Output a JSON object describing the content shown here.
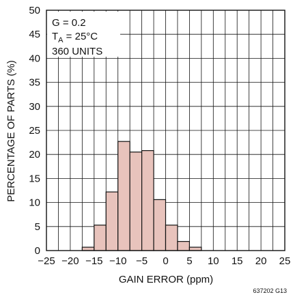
{
  "chart_data": {
    "type": "bar",
    "xlabel": "GAIN ERROR (ppm)",
    "ylabel": "PERCENTAGE OF PARTS (%)",
    "xlim": [
      -25,
      25
    ],
    "ylim": [
      0,
      50
    ],
    "x_ticks": [
      -25,
      -20,
      -15,
      -10,
      -5,
      0,
      5,
      10,
      15,
      20,
      25
    ],
    "y_ticks": [
      0,
      5,
      10,
      15,
      20,
      25,
      30,
      35,
      40,
      45,
      50
    ],
    "grid": true,
    "bin_width": 2.5,
    "bins": [
      {
        "x0": -17.5,
        "x1": -15,
        "value": 0.7
      },
      {
        "x0": -15,
        "x1": -12.5,
        "value": 5.3
      },
      {
        "x0": -12.5,
        "x1": -10,
        "value": 12.2
      },
      {
        "x0": -10,
        "x1": -7.5,
        "value": 22.7
      },
      {
        "x0": -7.5,
        "x1": -5,
        "value": 20.5
      },
      {
        "x0": -5,
        "x1": -2.5,
        "value": 20.8
      },
      {
        "x0": -2.5,
        "x1": 0,
        "value": 10.6
      },
      {
        "x0": 0,
        "x1": 2.5,
        "value": 5.3
      },
      {
        "x0": 2.5,
        "x1": 5,
        "value": 1.9
      },
      {
        "x0": 5,
        "x1": 7.5,
        "value": 0.7
      }
    ],
    "annotations": {
      "line1": "G = 0.2",
      "line2_prefix": "T",
      "line2_sub": "A",
      "line2_suffix": " = 25°C",
      "line3": "360 UNITS"
    }
  },
  "figure_code": "637202 G13",
  "colors": {
    "bar_fill": "#e8c3bc",
    "bar_stroke": "#111111",
    "grid": "#111111",
    "text": "#111111"
  }
}
